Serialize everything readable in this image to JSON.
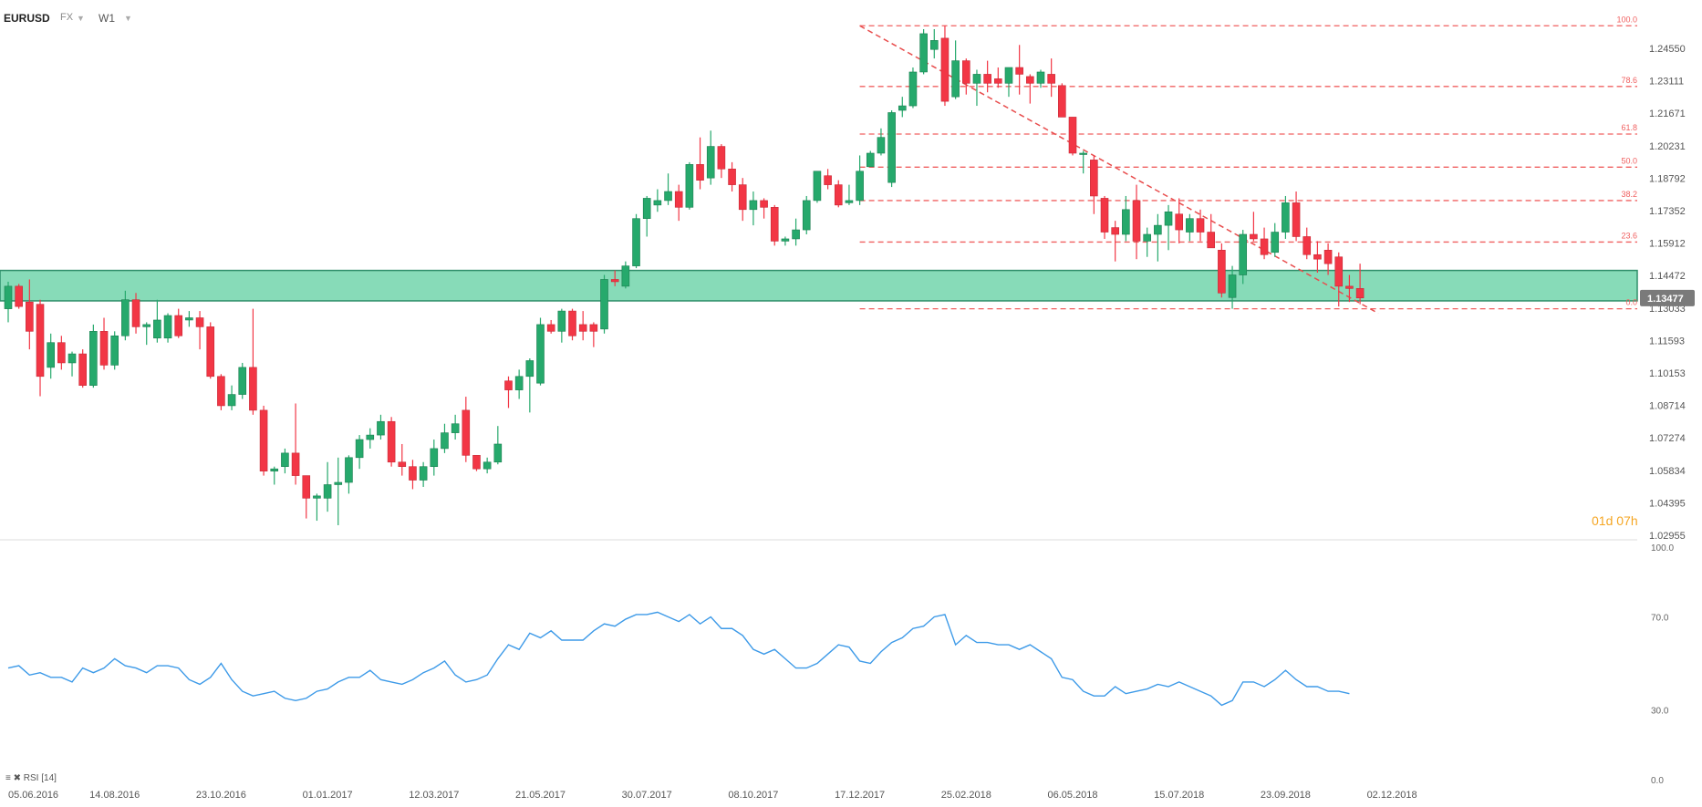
{
  "toolbar": {
    "symbol": "EURUSD",
    "market": "FX",
    "interval": "W1"
  },
  "countdown": "01d 07h",
  "rsi_label": "RSI [14]",
  "colors": {
    "up": "#26a96c",
    "down": "#f23645",
    "zone_fill": "#5fcfa0",
    "fib": "#f06060",
    "rsi_line": "#3d9ae8",
    "price_tag": "#7a7a7a"
  },
  "chart_data": [
    {
      "type": "candlestick",
      "title": "",
      "price_axis": {
        "ticks": [
          "1.24550",
          "1.23111",
          "1.21671",
          "1.20231",
          "1.18792",
          "1.17352",
          "1.15912",
          "1.14472",
          "1.13033",
          "1.11593",
          "1.10153",
          "1.08714",
          "1.07274",
          "1.05834",
          "1.04395",
          "1.02955"
        ],
        "current_price": "1.13477"
      },
      "time_axis": {
        "labels": [
          "05.06.2016",
          "14.08.2016",
          "23.10.2016",
          "01.01.2017",
          "12.03.2017",
          "21.05.2017",
          "30.07.2017",
          "08.10.2017",
          "17.12.2017",
          "25.02.2018",
          "06.05.2018",
          "15.07.2018",
          "23.09.2018",
          "02.12.2018"
        ],
        "label_index": [
          0,
          10,
          20,
          30,
          40,
          50,
          60,
          70,
          80,
          90,
          100,
          110,
          120,
          130
        ]
      },
      "support_zone": [
        1.1335,
        1.147
      ],
      "fibonacci": {
        "from_index": 80,
        "high": 1.2555,
        "low": 1.13,
        "levels": [
          {
            "label": "100.0",
            "value": 1.2555
          },
          {
            "label": "78.6",
            "value": 1.2286
          },
          {
            "label": "61.8",
            "value": 1.2075
          },
          {
            "label": "50.0",
            "value": 1.1928
          },
          {
            "label": "38.2",
            "value": 1.178
          },
          {
            "label": "23.6",
            "value": 1.1596
          },
          {
            "label": "0.0",
            "value": 1.13
          }
        ]
      },
      "trendline": {
        "from": [
          80,
          1.2555
        ],
        "to": [
          127,
          1.13
        ]
      },
      "candles": [
        {
          "o": 1.13,
          "h": 1.142,
          "l": 1.124,
          "c": 1.14
        },
        {
          "o": 1.14,
          "h": 1.141,
          "l": 1.13,
          "c": 1.131
        },
        {
          "o": 1.133,
          "h": 1.143,
          "l": 1.112,
          "c": 1.12
        },
        {
          "o": 1.132,
          "h": 1.134,
          "l": 1.0912,
          "c": 1.1
        },
        {
          "o": 1.104,
          "h": 1.119,
          "l": 1.099,
          "c": 1.115
        },
        {
          "o": 1.115,
          "h": 1.118,
          "l": 1.103,
          "c": 1.106
        },
        {
          "o": 1.106,
          "h": 1.111,
          "l": 1.1,
          "c": 1.11
        },
        {
          "o": 1.11,
          "h": 1.112,
          "l": 1.095,
          "c": 1.096
        },
        {
          "o": 1.096,
          "h": 1.123,
          "l": 1.095,
          "c": 1.12
        },
        {
          "o": 1.12,
          "h": 1.126,
          "l": 1.103,
          "c": 1.105
        },
        {
          "o": 1.105,
          "h": 1.12,
          "l": 1.103,
          "c": 1.118
        },
        {
          "o": 1.118,
          "h": 1.138,
          "l": 1.116,
          "c": 1.134
        },
        {
          "o": 1.134,
          "h": 1.137,
          "l": 1.119,
          "c": 1.122
        },
        {
          "o": 1.122,
          "h": 1.124,
          "l": 1.114,
          "c": 1.123
        },
        {
          "o": 1.117,
          "h": 1.134,
          "l": 1.115,
          "c": 1.125
        },
        {
          "o": 1.117,
          "h": 1.128,
          "l": 1.115,
          "c": 1.127
        },
        {
          "o": 1.127,
          "h": 1.13,
          "l": 1.117,
          "c": 1.118
        },
        {
          "o": 1.125,
          "h": 1.129,
          "l": 1.122,
          "c": 1.126
        },
        {
          "o": 1.126,
          "h": 1.129,
          "l": 1.112,
          "c": 1.122
        },
        {
          "o": 1.122,
          "h": 1.124,
          "l": 1.099,
          "c": 1.1
        },
        {
          "o": 1.1,
          "h": 1.101,
          "l": 1.085,
          "c": 1.087
        },
        {
          "o": 1.087,
          "h": 1.096,
          "l": 1.085,
          "c": 1.092
        },
        {
          "o": 1.092,
          "h": 1.106,
          "l": 1.09,
          "c": 1.104
        },
        {
          "o": 1.104,
          "h": 1.13,
          "l": 1.083,
          "c": 1.085
        },
        {
          "o": 1.085,
          "h": 1.087,
          "l": 1.056,
          "c": 1.058
        },
        {
          "o": 1.058,
          "h": 1.06,
          "l": 1.052,
          "c": 1.059
        },
        {
          "o": 1.06,
          "h": 1.068,
          "l": 1.057,
          "c": 1.066
        },
        {
          "o": 1.066,
          "h": 1.088,
          "l": 1.052,
          "c": 1.056
        },
        {
          "o": 1.056,
          "h": 1.056,
          "l": 1.037,
          "c": 1.046
        },
        {
          "o": 1.046,
          "h": 1.048,
          "l": 1.036,
          "c": 1.047
        },
        {
          "o": 1.046,
          "h": 1.062,
          "l": 1.04,
          "c": 1.052
        },
        {
          "o": 1.052,
          "h": 1.064,
          "l": 1.034,
          "c": 1.053
        },
        {
          "o": 1.053,
          "h": 1.065,
          "l": 1.048,
          "c": 1.064
        },
        {
          "o": 1.064,
          "h": 1.074,
          "l": 1.059,
          "c": 1.072
        },
        {
          "o": 1.072,
          "h": 1.077,
          "l": 1.068,
          "c": 1.074
        },
        {
          "o": 1.074,
          "h": 1.083,
          "l": 1.072,
          "c": 1.08
        },
        {
          "o": 1.08,
          "h": 1.082,
          "l": 1.06,
          "c": 1.062
        },
        {
          "o": 1.062,
          "h": 1.07,
          "l": 1.056,
          "c": 1.06
        },
        {
          "o": 1.06,
          "h": 1.063,
          "l": 1.05,
          "c": 1.054
        },
        {
          "o": 1.054,
          "h": 1.062,
          "l": 1.051,
          "c": 1.06
        },
        {
          "o": 1.06,
          "h": 1.072,
          "l": 1.056,
          "c": 1.068
        },
        {
          "o": 1.068,
          "h": 1.079,
          "l": 1.066,
          "c": 1.075
        },
        {
          "o": 1.075,
          "h": 1.083,
          "l": 1.072,
          "c": 1.079
        },
        {
          "o": 1.085,
          "h": 1.091,
          "l": 1.062,
          "c": 1.065
        },
        {
          "o": 1.065,
          "h": 1.065,
          "l": 1.058,
          "c": 1.059
        },
        {
          "o": 1.059,
          "h": 1.064,
          "l": 1.057,
          "c": 1.062
        },
        {
          "o": 1.062,
          "h": 1.078,
          "l": 1.061,
          "c": 1.07
        },
        {
          "o": 1.098,
          "h": 1.1,
          "l": 1.086,
          "c": 1.094
        },
        {
          "o": 1.094,
          "h": 1.103,
          "l": 1.09,
          "c": 1.1
        },
        {
          "o": 1.1,
          "h": 1.108,
          "l": 1.084,
          "c": 1.107
        },
        {
          "o": 1.097,
          "h": 1.126,
          "l": 1.096,
          "c": 1.123
        },
        {
          "o": 1.123,
          "h": 1.125,
          "l": 1.119,
          "c": 1.12
        },
        {
          "o": 1.12,
          "h": 1.13,
          "l": 1.115,
          "c": 1.129
        },
        {
          "o": 1.129,
          "h": 1.13,
          "l": 1.116,
          "c": 1.118
        },
        {
          "o": 1.123,
          "h": 1.129,
          "l": 1.116,
          "c": 1.12
        },
        {
          "o": 1.123,
          "h": 1.124,
          "l": 1.113,
          "c": 1.12
        },
        {
          "o": 1.121,
          "h": 1.145,
          "l": 1.119,
          "c": 1.143
        },
        {
          "o": 1.143,
          "h": 1.147,
          "l": 1.14,
          "c": 1.142
        },
        {
          "o": 1.14,
          "h": 1.151,
          "l": 1.139,
          "c": 1.149
        },
        {
          "o": 1.149,
          "h": 1.172,
          "l": 1.148,
          "c": 1.17
        },
        {
          "o": 1.17,
          "h": 1.18,
          "l": 1.162,
          "c": 1.179
        },
        {
          "o": 1.176,
          "h": 1.183,
          "l": 1.173,
          "c": 1.178
        },
        {
          "o": 1.178,
          "h": 1.19,
          "l": 1.176,
          "c": 1.182
        },
        {
          "o": 1.182,
          "h": 1.185,
          "l": 1.169,
          "c": 1.175
        },
        {
          "o": 1.175,
          "h": 1.195,
          "l": 1.174,
          "c": 1.194
        },
        {
          "o": 1.194,
          "h": 1.206,
          "l": 1.183,
          "c": 1.187
        },
        {
          "o": 1.188,
          "h": 1.209,
          "l": 1.185,
          "c": 1.202
        },
        {
          "o": 1.202,
          "h": 1.203,
          "l": 1.188,
          "c": 1.192
        },
        {
          "o": 1.192,
          "h": 1.195,
          "l": 1.182,
          "c": 1.185
        },
        {
          "o": 1.185,
          "h": 1.188,
          "l": 1.169,
          "c": 1.174
        },
        {
          "o": 1.174,
          "h": 1.182,
          "l": 1.167,
          "c": 1.178
        },
        {
          "o": 1.178,
          "h": 1.179,
          "l": 1.17,
          "c": 1.175
        },
        {
          "o": 1.175,
          "h": 1.176,
          "l": 1.158,
          "c": 1.16
        },
        {
          "o": 1.16,
          "h": 1.162,
          "l": 1.158,
          "c": 1.161
        },
        {
          "o": 1.161,
          "h": 1.17,
          "l": 1.158,
          "c": 1.165
        },
        {
          "o": 1.165,
          "h": 1.18,
          "l": 1.163,
          "c": 1.178
        },
        {
          "o": 1.178,
          "h": 1.191,
          "l": 1.177,
          "c": 1.191
        },
        {
          "o": 1.189,
          "h": 1.192,
          "l": 1.183,
          "c": 1.185
        },
        {
          "o": 1.185,
          "h": 1.187,
          "l": 1.175,
          "c": 1.176
        },
        {
          "o": 1.177,
          "h": 1.185,
          "l": 1.176,
          "c": 1.178
        },
        {
          "o": 1.178,
          "h": 1.198,
          "l": 1.176,
          "c": 1.191
        },
        {
          "o": 1.193,
          "h": 1.2,
          "l": 1.193,
          "c": 1.199
        },
        {
          "o": 1.199,
          "h": 1.21,
          "l": 1.198,
          "c": 1.206
        },
        {
          "o": 1.186,
          "h": 1.218,
          "l": 1.184,
          "c": 1.217
        },
        {
          "o": 1.218,
          "h": 1.224,
          "l": 1.215,
          "c": 1.22
        },
        {
          "o": 1.22,
          "h": 1.237,
          "l": 1.219,
          "c": 1.235
        },
        {
          "o": 1.235,
          "h": 1.254,
          "l": 1.234,
          "c": 1.252
        },
        {
          "o": 1.245,
          "h": 1.254,
          "l": 1.241,
          "c": 1.249
        },
        {
          "o": 1.25,
          "h": 1.2555,
          "l": 1.22,
          "c": 1.222
        },
        {
          "o": 1.224,
          "h": 1.249,
          "l": 1.223,
          "c": 1.24
        },
        {
          "o": 1.24,
          "h": 1.241,
          "l": 1.225,
          "c": 1.23
        },
        {
          "o": 1.23,
          "h": 1.236,
          "l": 1.22,
          "c": 1.234
        },
        {
          "o": 1.234,
          "h": 1.24,
          "l": 1.226,
          "c": 1.23
        },
        {
          "o": 1.232,
          "h": 1.237,
          "l": 1.228,
          "c": 1.23
        },
        {
          "o": 1.23,
          "h": 1.236,
          "l": 1.224,
          "c": 1.237
        },
        {
          "o": 1.237,
          "h": 1.247,
          "l": 1.225,
          "c": 1.234
        },
        {
          "o": 1.233,
          "h": 1.234,
          "l": 1.221,
          "c": 1.23
        },
        {
          "o": 1.23,
          "h": 1.236,
          "l": 1.228,
          "c": 1.235
        },
        {
          "o": 1.234,
          "h": 1.241,
          "l": 1.224,
          "c": 1.23
        },
        {
          "o": 1.229,
          "h": 1.23,
          "l": 1.215,
          "c": 1.215
        },
        {
          "o": 1.215,
          "h": 1.215,
          "l": 1.198,
          "c": 1.199
        },
        {
          "o": 1.199,
          "h": 1.2,
          "l": 1.19,
          "c": 1.199
        },
        {
          "o": 1.196,
          "h": 1.198,
          "l": 1.172,
          "c": 1.18
        },
        {
          "o": 1.179,
          "h": 1.18,
          "l": 1.161,
          "c": 1.164
        },
        {
          "o": 1.166,
          "h": 1.169,
          "l": 1.151,
          "c": 1.163
        },
        {
          "o": 1.163,
          "h": 1.18,
          "l": 1.16,
          "c": 1.174
        },
        {
          "o": 1.178,
          "h": 1.185,
          "l": 1.152,
          "c": 1.16
        },
        {
          "o": 1.16,
          "h": 1.166,
          "l": 1.153,
          "c": 1.163
        },
        {
          "o": 1.163,
          "h": 1.172,
          "l": 1.151,
          "c": 1.167
        },
        {
          "o": 1.167,
          "h": 1.176,
          "l": 1.156,
          "c": 1.173
        },
        {
          "o": 1.172,
          "h": 1.179,
          "l": 1.159,
          "c": 1.165
        },
        {
          "o": 1.164,
          "h": 1.172,
          "l": 1.16,
          "c": 1.17
        },
        {
          "o": 1.17,
          "h": 1.174,
          "l": 1.16,
          "c": 1.164
        },
        {
          "o": 1.164,
          "h": 1.172,
          "l": 1.159,
          "c": 1.157
        },
        {
          "o": 1.156,
          "h": 1.159,
          "l": 1.135,
          "c": 1.137
        },
        {
          "o": 1.135,
          "h": 1.149,
          "l": 1.13,
          "c": 1.145
        },
        {
          "o": 1.145,
          "h": 1.165,
          "l": 1.141,
          "c": 1.163
        },
        {
          "o": 1.163,
          "h": 1.173,
          "l": 1.16,
          "c": 1.161
        },
        {
          "o": 1.161,
          "h": 1.166,
          "l": 1.152,
          "c": 1.154
        },
        {
          "o": 1.155,
          "h": 1.168,
          "l": 1.153,
          "c": 1.164
        },
        {
          "o": 1.164,
          "h": 1.18,
          "l": 1.161,
          "c": 1.177
        },
        {
          "o": 1.177,
          "h": 1.182,
          "l": 1.16,
          "c": 1.162
        },
        {
          "o": 1.162,
          "h": 1.166,
          "l": 1.152,
          "c": 1.154
        },
        {
          "o": 1.154,
          "h": 1.16,
          "l": 1.146,
          "c": 1.152
        },
        {
          "o": 1.156,
          "h": 1.159,
          "l": 1.145,
          "c": 1.15
        },
        {
          "o": 1.153,
          "h": 1.155,
          "l": 1.131,
          "c": 1.14
        },
        {
          "o": 1.14,
          "h": 1.145,
          "l": 1.133,
          "c": 1.139
        },
        {
          "o": 1.139,
          "h": 1.15,
          "l": 1.132,
          "c": 1.1348
        }
      ]
    },
    {
      "type": "line",
      "title": "RSI [14]",
      "ylim": [
        0,
        100
      ],
      "y_ticks": [
        "100.0",
        "70.0",
        "30.0",
        "0.0"
      ],
      "values": [
        48,
        49,
        45,
        46,
        44,
        44,
        42,
        48,
        46,
        48,
        52,
        49,
        48,
        46,
        49,
        49,
        48,
        43,
        41,
        44,
        50,
        43,
        38,
        36,
        37,
        38,
        35,
        34,
        35,
        38,
        39,
        42,
        44,
        44,
        47,
        43,
        42,
        41,
        43,
        46,
        48,
        51,
        45,
        42,
        43,
        45,
        52,
        58,
        56,
        63,
        61,
        64,
        60,
        60,
        60,
        64,
        67,
        66,
        69,
        71,
        71,
        72,
        70,
        68,
        71,
        67,
        70,
        65,
        65,
        62,
        56,
        54,
        56,
        52,
        48,
        48,
        50,
        54,
        58,
        57,
        51,
        50,
        55,
        59,
        61,
        65,
        66,
        70,
        71,
        58,
        62,
        59,
        59,
        58,
        58,
        56,
        58,
        55,
        52,
        44,
        43,
        38,
        36,
        36,
        40,
        37,
        38,
        39,
        41,
        40,
        42,
        40,
        38,
        36,
        32,
        34,
        42,
        42,
        40,
        43,
        47,
        43,
        40,
        40,
        38,
        38,
        37
      ]
    }
  ]
}
